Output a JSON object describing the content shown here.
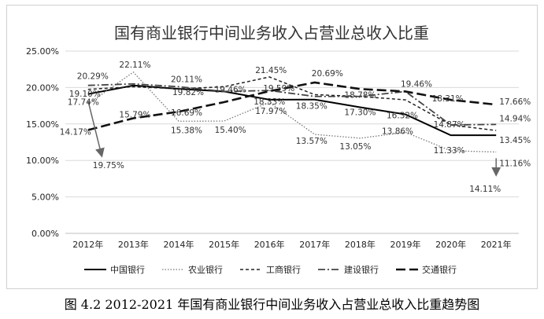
{
  "chart_data": {
    "type": "line",
    "title": "国有商业银行中间业务收入占营业总收入比重",
    "categories": [
      "2012年",
      "2013年",
      "2014年",
      "2015年",
      "2016年",
      "2017年",
      "2018年",
      "2019年",
      "2020年",
      "2021年"
    ],
    "ylim": [
      0,
      25
    ],
    "yticks": [
      "0.00%",
      "5.00%",
      "10.00%",
      "15.00%",
      "20.00%",
      "25.00%"
    ],
    "grid": true,
    "legend_position": "bottom",
    "series": [
      {
        "name": "中国银行",
        "values": [
          19.1,
          20.29,
          19.82,
          19.46,
          18.33,
          18.35,
          17.3,
          16.32,
          13.45,
          13.45
        ],
        "color": "#000000",
        "style": "solid"
      },
      {
        "name": "农业银行",
        "values": [
          17.74,
          22.11,
          15.38,
          15.4,
          17.97,
          13.57,
          13.05,
          13.86,
          11.33,
          11.16
        ],
        "color": "#777777",
        "style": "dotted"
      },
      {
        "name": "工商银行",
        "values": [
          19.75,
          20.11,
          19.82,
          20.11,
          21.45,
          19.02,
          18.78,
          18.31,
          14.87,
          14.11
        ],
        "color": "#222222",
        "style": "dashed"
      },
      {
        "name": "建设银行",
        "values": [
          20.29,
          20.5,
          20.11,
          19.46,
          19.59,
          18.78,
          18.78,
          19.46,
          14.87,
          14.94
        ],
        "color": "#444444",
        "style": "dashdot"
      },
      {
        "name": "交通银行",
        "values": [
          14.17,
          15.79,
          16.69,
          18.0,
          19.5,
          20.69,
          19.8,
          19.46,
          18.31,
          17.66
        ],
        "color": "#111111",
        "style": "longdash"
      }
    ],
    "annotations": [
      {
        "text": "20.29%",
        "cat": 0,
        "y": 20.29,
        "dx": -14,
        "dy": -8
      },
      {
        "text": "19.10%",
        "cat": 0,
        "y": 19.1,
        "dx": -24,
        "dy": 3
      },
      {
        "text": "17.74%",
        "cat": 0,
        "y": 17.74,
        "dx": -26,
        "dy": 1
      },
      {
        "text": "14.17%",
        "cat": 0,
        "y": 14.17,
        "dx": -36,
        "dy": 6
      },
      {
        "text": "19.75%",
        "cat": 0,
        "y": 9.8,
        "dx": 6,
        "dy": 8
      },
      {
        "text": "22.11%",
        "cat": 1,
        "y": 22.11,
        "dx": -18,
        "dy": -6
      },
      {
        "text": "15.79%",
        "cat": 1,
        "y": 15.79,
        "dx": -18,
        "dy": -1
      },
      {
        "text": "20.11%",
        "cat": 2,
        "y": 20.11,
        "dx": -10,
        "dy": -6
      },
      {
        "text": "19.82%",
        "cat": 2,
        "y": 19.82,
        "dx": -8,
        "dy": 8
      },
      {
        "text": "16.69%",
        "cat": 2,
        "y": 16.69,
        "dx": -10,
        "dy": 5
      },
      {
        "text": "15.38%",
        "cat": 2,
        "y": 15.38,
        "dx": -10,
        "dy": 15
      },
      {
        "text": "19.46%",
        "cat": 3,
        "y": 19.46,
        "dx": -12,
        "dy": 1
      },
      {
        "text": "15.40%",
        "cat": 3,
        "y": 15.4,
        "dx": -12,
        "dy": 15
      },
      {
        "text": "21.45%",
        "cat": 4,
        "y": 21.45,
        "dx": -18,
        "dy": -5
      },
      {
        "text": "19.59%",
        "cat": 4,
        "y": 19.59,
        "dx": -8,
        "dy": 1
      },
      {
        "text": "18.33%",
        "cat": 4,
        "y": 18.33,
        "dx": -20,
        "dy": 6
      },
      {
        "text": "17.97%",
        "cat": 4,
        "y": 17.97,
        "dx": -18,
        "dy": 15
      },
      {
        "text": "20.69%",
        "cat": 5,
        "y": 20.69,
        "dx": -4,
        "dy": -8
      },
      {
        "text": "18.35%",
        "cat": 5,
        "y": 18.35,
        "dx": -24,
        "dy": 12
      },
      {
        "text": "13.57%",
        "cat": 5,
        "y": 13.57,
        "dx": -24,
        "dy": 12
      },
      {
        "text": "18.78%",
        "cat": 6,
        "y": 18.78,
        "dx": -20,
        "dy": 2
      },
      {
        "text": "17.30%",
        "cat": 6,
        "y": 17.3,
        "dx": -20,
        "dy": 10
      },
      {
        "text": "13.05%",
        "cat": 6,
        "y": 13.05,
        "dx": -26,
        "dy": 14
      },
      {
        "text": "19.46%",
        "cat": 7,
        "y": 19.46,
        "dx": -6,
        "dy": -6
      },
      {
        "text": "16.32%",
        "cat": 7,
        "y": 16.32,
        "dx": -24,
        "dy": 5
      },
      {
        "text": "13.86%",
        "cat": 7,
        "y": 13.86,
        "dx": -30,
        "dy": 2
      },
      {
        "text": "18.31%",
        "cat": 8,
        "y": 18.31,
        "dx": -24,
        "dy": 2
      },
      {
        "text": "14.87%",
        "cat": 8,
        "y": 14.87,
        "dx": -22,
        "dy": 3
      },
      {
        "text": "11.33%",
        "cat": 8,
        "y": 11.33,
        "dx": -22,
        "dy": 3
      },
      {
        "text": "17.66%",
        "cat": 9,
        "y": 17.66,
        "dx": 4,
        "dy": 0
      },
      {
        "text": "14.94%",
        "cat": 9,
        "y": 14.94,
        "dx": 4,
        "dy": -4
      },
      {
        "text": "13.45%",
        "cat": 9,
        "y": 13.45,
        "dx": 4,
        "dy": 10
      },
      {
        "text": "11.16%",
        "cat": 9,
        "y": 11.16,
        "dx": 4,
        "dy": 18
      },
      {
        "text": "14.11%",
        "cat": 9,
        "y": 7.2,
        "dx": -34,
        "dy": 14
      }
    ],
    "arrows": [
      {
        "cat_from": 0,
        "y_from": 18.2,
        "cat_to": 0.3,
        "y_to": 10.7
      },
      {
        "cat_from": 9,
        "y_from": 10.3,
        "cat_to": 9,
        "y_to": 8.1
      }
    ]
  },
  "caption": "图 4.2 2012-2021 年国有商业银行中间业务收入占营业总收入比重趋势图"
}
